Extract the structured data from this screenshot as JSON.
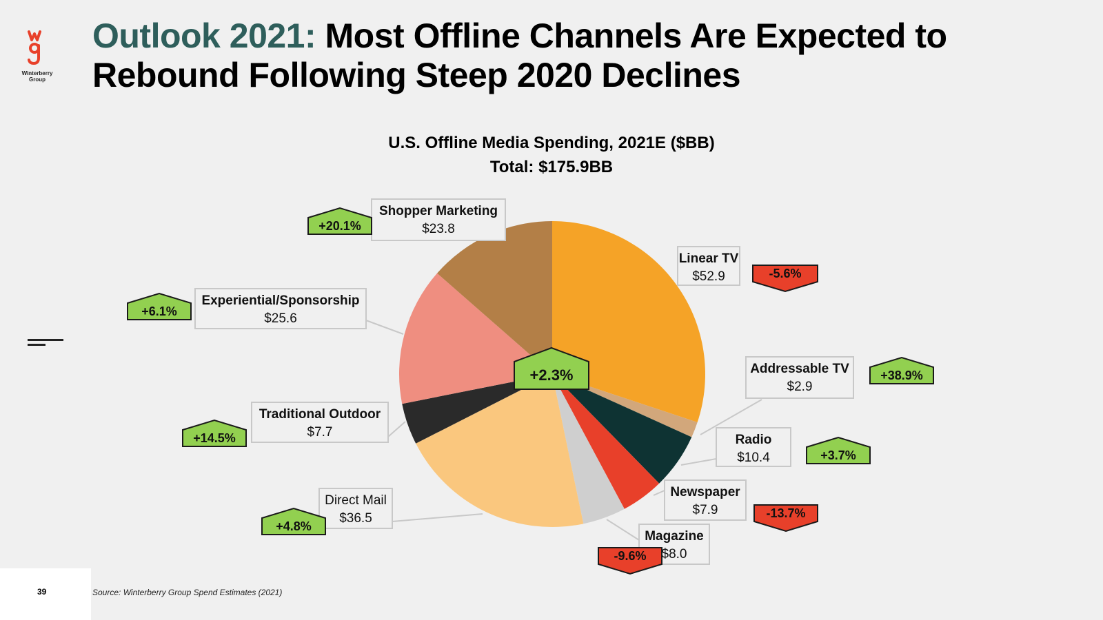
{
  "logo": {
    "letters": "wg",
    "caption_line1": "Winterberry",
    "caption_line2": "Group"
  },
  "header": {
    "accent": "Outlook 2021:",
    "line1_rest": " Most Offline Channels Are Expected to",
    "line2": "Rebound Following Steep 2020 Declines"
  },
  "chart_title": "U.S. Offline Media Spending, 2021E ($BB)",
  "chart_subtitle": "Total: $175.9BB",
  "footer": {
    "page_number": "39",
    "source": "Source: Winterberry Group Spend Estimates (2021)"
  },
  "colors": {
    "up_badge": "#92d050",
    "down_badge": "#e8402a",
    "accent": "#2e5e5b"
  },
  "chart_data": {
    "type": "pie",
    "title": "U.S. Offline Media Spending, 2021E ($BB)",
    "subtitle": "Total: $175.9BB",
    "total": 175.9,
    "total_label": "$175.9BB",
    "center_badge": {
      "text": "+2.3%",
      "direction": "up"
    },
    "slices": [
      {
        "name": "Linear TV",
        "value": 52.9,
        "label_value": "$52.9",
        "change": "-5.6%",
        "direction": "down",
        "color": "#f5a327",
        "bold_name": true
      },
      {
        "name": "Addressable TV",
        "value": 2.9,
        "label_value": "$2.9",
        "change": "+38.9%",
        "direction": "up",
        "color": "#d2a77b",
        "bold_name": true
      },
      {
        "name": "Radio",
        "value": 10.4,
        "label_value": "$10.4",
        "change": "+3.7%",
        "direction": "up",
        "color": "#0e3333",
        "bold_name": true
      },
      {
        "name": "Newspaper",
        "value": 7.9,
        "label_value": "$7.9",
        "change": "-13.7%",
        "direction": "down",
        "color": "#e8402a",
        "bold_name": true
      },
      {
        "name": "Magazine",
        "value": 8.0,
        "label_value": "$8.0",
        "change": "-9.6%",
        "direction": "down",
        "color": "#cfcfcf",
        "bold_name": true
      },
      {
        "name": "Direct Mail",
        "value": 36.5,
        "label_value": "$36.5",
        "change": "+4.8%",
        "direction": "up",
        "color": "#fac77e",
        "bold_name": false
      },
      {
        "name": "Traditional Outdoor",
        "value": 7.7,
        "label_value": "$7.7",
        "change": "+14.5%",
        "direction": "up",
        "color": "#2a2a2a",
        "bold_name": true
      },
      {
        "name": "Experiential/Sponsorship",
        "value": 25.6,
        "label_value": "$25.6",
        "change": "+6.1%",
        "direction": "up",
        "color": "#ef8e80",
        "bold_name": true
      },
      {
        "name": "Shopper Marketing",
        "value": 23.8,
        "label_value": "$23.8",
        "change": "+20.1%",
        "direction": "up",
        "color": "#b37f47",
        "bold_name": true
      }
    ]
  }
}
